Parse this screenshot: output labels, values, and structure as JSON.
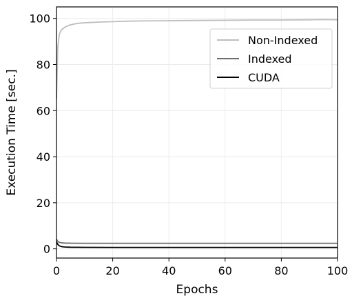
{
  "chart_data": {
    "type": "line",
    "xlabel": "Epochs",
    "ylabel": "Execution Time [sec.]",
    "xlim": [
      0,
      100
    ],
    "ylim": [
      -4,
      105
    ],
    "xticks": [
      0,
      20,
      40,
      60,
      80,
      100
    ],
    "yticks": [
      0,
      20,
      40,
      60,
      80,
      100
    ],
    "grid": true,
    "legend_position": "top-right",
    "series": [
      {
        "name": "Non-Indexed",
        "color": "#bdbdbd",
        "x": [
          0,
          0.5,
          1,
          1.5,
          2,
          3,
          4,
          5,
          6,
          8,
          10,
          15,
          20,
          25,
          30,
          40,
          50,
          60,
          70,
          80,
          90,
          95,
          100
        ],
        "y": [
          65,
          88,
          93,
          94.5,
          95.3,
          96.2,
          96.8,
          97.2,
          97.5,
          97.9,
          98.1,
          98.4,
          98.6,
          98.8,
          98.9,
          99.0,
          99.1,
          99.2,
          99.3,
          99.3,
          99.4,
          99.5,
          99.4
        ]
      },
      {
        "name": "Indexed",
        "color": "#6e6e6e",
        "x": [
          0,
          0.5,
          1,
          2,
          3,
          5,
          10,
          20,
          40,
          60,
          80,
          100
        ],
        "y": [
          4.2,
          3.2,
          2.8,
          2.6,
          2.5,
          2.45,
          2.4,
          2.4,
          2.4,
          2.4,
          2.4,
          2.4
        ]
      },
      {
        "name": "CUDA",
        "color": "#000000",
        "x": [
          0,
          0.5,
          1,
          2,
          3,
          5,
          10,
          20,
          40,
          60,
          80,
          100
        ],
        "y": [
          3.0,
          1.9,
          1.3,
          0.9,
          0.8,
          0.7,
          0.65,
          0.6,
          0.6,
          0.6,
          0.6,
          0.6
        ]
      }
    ]
  }
}
